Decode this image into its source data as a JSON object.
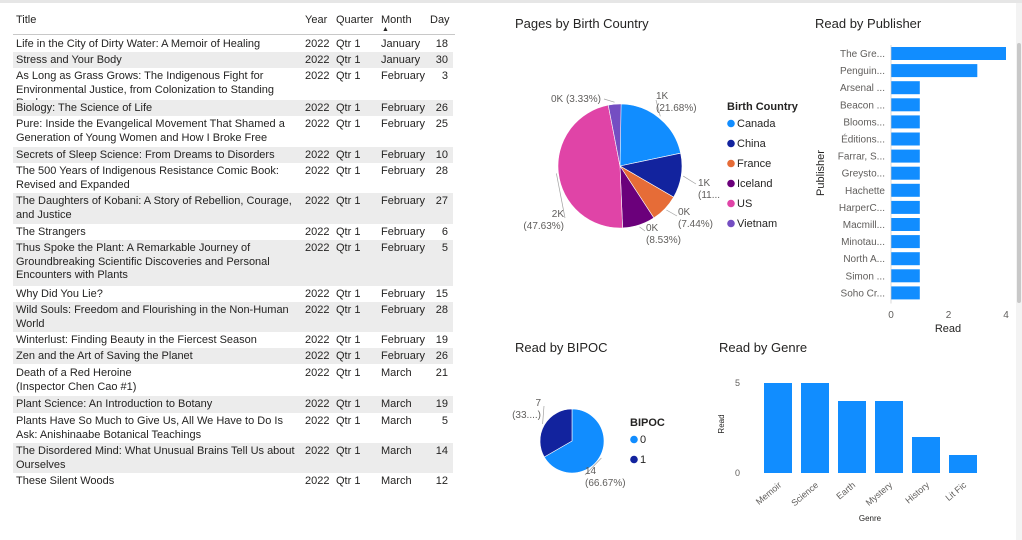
{
  "table": {
    "columns": [
      "Title",
      "Year",
      "Quarter",
      "Month",
      "Day"
    ],
    "rows": [
      {
        "title": "Life in the City of Dirty Water: A Memoir of Healing",
        "year": "2022",
        "quarter": "Qtr 1",
        "month": "January",
        "day": "18"
      },
      {
        "title": "Stress and Your Body",
        "year": "2022",
        "quarter": "Qtr 1",
        "month": "January",
        "day": "30"
      },
      {
        "title": "As Long as Grass Grows: The Indigenous Fight for Environmental Justice, from Colonization to Standing Rock",
        "year": "2022",
        "quarter": "Qtr 1",
        "month": "February",
        "day": "3"
      },
      {
        "title": "Biology: The Science of Life",
        "year": "2022",
        "quarter": "Qtr 1",
        "month": "February",
        "day": "26"
      },
      {
        "title": "Pure: Inside the Evangelical Movement That Shamed a Generation of Young Women and How I Broke Free",
        "year": "2022",
        "quarter": "Qtr 1",
        "month": "February",
        "day": "25"
      },
      {
        "title": "Secrets of Sleep Science: From Dreams to Disorders",
        "year": "2022",
        "quarter": "Qtr 1",
        "month": "February",
        "day": "10"
      },
      {
        "title": "The 500 Years of Indigenous Resistance Comic Book: Revised and Expanded",
        "year": "2022",
        "quarter": "Qtr 1",
        "month": "February",
        "day": "28"
      },
      {
        "title": "The Daughters of Kobani: A Story of Rebellion, Courage, and Justice",
        "year": "2022",
        "quarter": "Qtr 1",
        "month": "February",
        "day": "27"
      },
      {
        "title": "The Strangers",
        "year": "2022",
        "quarter": "Qtr 1",
        "month": "February",
        "day": "6"
      },
      {
        "title": "Thus Spoke the Plant: A Remarkable Journey of Groundbreaking Scientific Discoveries and Personal Encounters with Plants",
        "year": "2022",
        "quarter": "Qtr 1",
        "month": "February",
        "day": "5"
      },
      {
        "title": "Why Did You Lie?",
        "year": "2022",
        "quarter": "Qtr 1",
        "month": "February",
        "day": "15"
      },
      {
        "title": "Wild Souls: Freedom and Flourishing in the Non-Human World",
        "year": "2022",
        "quarter": "Qtr 1",
        "month": "February",
        "day": "28"
      },
      {
        "title": "Winterlust: Finding Beauty in the Fiercest Season",
        "year": "2022",
        "quarter": "Qtr 1",
        "month": "February",
        "day": "19"
      },
      {
        "title": "Zen and the Art of Saving the Planet",
        "year": "2022",
        "quarter": "Qtr 1",
        "month": "February",
        "day": "26"
      },
      {
        "title": "Death of a Red Heroine\n(Inspector Chen Cao #1)",
        "year": "2022",
        "quarter": "Qtr 1",
        "month": "March",
        "day": "21"
      },
      {
        "title": "Plant Science: An Introduction to Botany",
        "year": "2022",
        "quarter": "Qtr 1",
        "month": "March",
        "day": "19"
      },
      {
        "title": "Plants Have So Much to Give Us, All We Have to Do Is Ask: Anishinaabe Botanical Teachings",
        "year": "2022",
        "quarter": "Qtr 1",
        "month": "March",
        "day": "5"
      },
      {
        "title": "The Disordered Mind: What Unusual Brains Tell Us about Ourselves",
        "year": "2022",
        "quarter": "Qtr 1",
        "month": "March",
        "day": "14"
      },
      {
        "title": "These Silent Woods",
        "year": "2022",
        "quarter": "Qtr 1",
        "month": "March",
        "day": "12"
      }
    ]
  },
  "chart_data": [
    {
      "type": "pie",
      "title": "Pages by Birth Country",
      "legend_title": "Birth Country",
      "legend_position": "right",
      "slices": [
        {
          "name": "Canada",
          "value_label": "1K",
          "percent_label": "(21.68%)",
          "percent": 21.68,
          "color": "#118DFF"
        },
        {
          "name": "China",
          "value_label": "1K",
          "percent_label": "(11...",
          "percent": 11.68,
          "color": "#12239E"
        },
        {
          "name": "France",
          "value_label": "0K",
          "percent_label": "(7.44%)",
          "percent": 7.44,
          "color": "#E66C37"
        },
        {
          "name": "Iceland",
          "value_label": "0K",
          "percent_label": "(8.53%)",
          "percent": 8.53,
          "color": "#6B007B"
        },
        {
          "name": "US",
          "value_label": "2K",
          "percent_label": "(47.63%)",
          "percent": 47.63,
          "color": "#E044A7"
        },
        {
          "name": "Vietnam",
          "value_label": "0K",
          "percent_label": "(3.33%)",
          "percent": 3.33,
          "color": "#744EC2"
        }
      ]
    },
    {
      "type": "bar",
      "orientation": "horizontal",
      "title": "Read by Publisher",
      "xlabel": "Read",
      "ylabel": "Publisher",
      "xlim": [
        0,
        4
      ],
      "xticks": [
        "0",
        "2",
        "4"
      ],
      "color": "#118DFF",
      "categories": [
        "The Gre...",
        "Penguin...",
        "Arsenal ...",
        "Beacon ...",
        "Blooms...",
        "Éditions...",
        "Farrar, S...",
        "Greysto...",
        "Hachette",
        "HarperC...",
        "Macmill...",
        "Minotau...",
        "North A...",
        "Simon ...",
        "Soho Cr..."
      ],
      "values": [
        4,
        3,
        1,
        1,
        1,
        1,
        1,
        1,
        1,
        1,
        1,
        1,
        1,
        1,
        1
      ]
    },
    {
      "type": "pie",
      "title": "Read by BIPOC",
      "legend_title": "BIPOC",
      "legend_position": "right",
      "slices": [
        {
          "name": "0",
          "value_label": "14",
          "percent_label": "(66.67%)",
          "percent": 66.67,
          "color": "#118DFF"
        },
        {
          "name": "1",
          "value_label": "7",
          "percent_label": "(33....)",
          "percent": 33.33,
          "color": "#12239E"
        }
      ]
    },
    {
      "type": "bar",
      "orientation": "vertical",
      "title": "Read by Genre",
      "xlabel": "Genre",
      "ylabel": "Read",
      "ylim": [
        0,
        5
      ],
      "yticks": [
        "0",
        "5"
      ],
      "color": "#118DFF",
      "categories": [
        "Memoir",
        "Science",
        "Earth",
        "Mystery",
        "History",
        "Lit Fic"
      ],
      "values": [
        5,
        5,
        4,
        4,
        2,
        1
      ]
    }
  ]
}
